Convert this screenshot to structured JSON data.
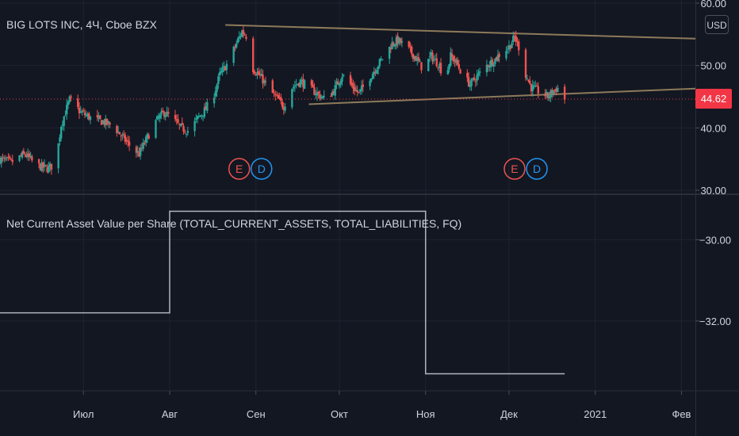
{
  "header": {
    "symbol_title": "BIG LOTS INC, 4Ч, Cboe BZX",
    "currency": "USD"
  },
  "last_price": "44.62",
  "indicator": {
    "title": "Net Current Asset Value per Share (TOTAL_CURRENT_ASSETS, TOTAL_LIABILITIES, FQ)"
  },
  "events": [
    {
      "label": "E",
      "kind": "earnings",
      "date": "2020-08-26"
    },
    {
      "label": "D",
      "kind": "dividend",
      "date": "2020-09-03"
    },
    {
      "label": "E",
      "kind": "earnings",
      "date": "2020-12-03"
    },
    {
      "label": "D",
      "kind": "dividend",
      "date": "2020-12-11"
    }
  ],
  "colors": {
    "background": "#131722",
    "up": "#26a69a",
    "down": "#ef5350",
    "trendline": "#8d7a5a",
    "price_line": "#f23645",
    "earnings": "#ef5350",
    "dividend": "#2196f3",
    "indicator_line": "#b2b5be",
    "grid": "#1f2331",
    "text": "#d1d4dc"
  },
  "chart_data": [
    {
      "type": "candlestick",
      "title": "BIG LOTS INC, 4Ч, Cboe BZX",
      "x_axis": {
        "labels": [
          "Июл",
          "Авг",
          "Сен",
          "Окт",
          "Ноя",
          "Дек",
          "2021",
          "Фев"
        ],
        "label_dates": [
          "2020-07-01",
          "2020-08-01",
          "2020-09-01",
          "2020-10-01",
          "2020-11-01",
          "2020-12-01",
          "2021-01-01",
          "2021-02-01"
        ],
        "range": [
          "2020-06-01",
          "2021-02-06"
        ]
      },
      "y_axis": {
        "ticks": [
          "60.00",
          "50.00",
          "40.00",
          "30.00"
        ],
        "tick_values": [
          60,
          50,
          40,
          30
        ],
        "range": [
          29.5,
          60.5
        ]
      },
      "close_path": [
        [
          "2020-06-01",
          35.0
        ],
        [
          "2020-06-05",
          34.5
        ],
        [
          "2020-06-10",
          35.8
        ],
        [
          "2020-06-14",
          34.0
        ],
        [
          "2020-06-18",
          33.5
        ],
        [
          "2020-06-21",
          34.2
        ],
        [
          "2020-06-23",
          40.5
        ],
        [
          "2020-06-26",
          44.5
        ],
        [
          "2020-06-30",
          42.5
        ],
        [
          "2020-07-04",
          41.5
        ],
        [
          "2020-07-08",
          41.0
        ],
        [
          "2020-07-12",
          40.2
        ],
        [
          "2020-07-15",
          38.5
        ],
        [
          "2020-07-18",
          37.0
        ],
        [
          "2020-07-21",
          35.8
        ],
        [
          "2020-07-24",
          38.5
        ],
        [
          "2020-07-27",
          41.0
        ],
        [
          "2020-07-30",
          42.5
        ],
        [
          "2020-08-02",
          41.5
        ],
        [
          "2020-08-05",
          40.0
        ],
        [
          "2020-08-08",
          39.5
        ],
        [
          "2020-08-11",
          41.5
        ],
        [
          "2020-08-14",
          43.0
        ],
        [
          "2020-08-17",
          45.5
        ],
        [
          "2020-08-19",
          48.5
        ],
        [
          "2020-08-22",
          50.5
        ],
        [
          "2020-08-25",
          53.5
        ],
        [
          "2020-08-27",
          55.5
        ],
        [
          "2020-08-29",
          54.5
        ],
        [
          "2020-08-31",
          49.5
        ],
        [
          "2020-09-03",
          48.0
        ],
        [
          "2020-09-06",
          46.0
        ],
        [
          "2020-09-09",
          44.5
        ],
        [
          "2020-09-11",
          43.5
        ],
        [
          "2020-09-14",
          46.5
        ],
        [
          "2020-09-17",
          47.5
        ],
        [
          "2020-09-20",
          46.5
        ],
        [
          "2020-09-23",
          45.5
        ],
        [
          "2020-09-26",
          44.5
        ],
        [
          "2020-09-29",
          46.0
        ],
        [
          "2020-10-02",
          48.5
        ],
        [
          "2020-10-05",
          47.0
        ],
        [
          "2020-10-08",
          45.5
        ],
        [
          "2020-10-11",
          47.5
        ],
        [
          "2020-10-14",
          49.5
        ],
        [
          "2020-10-17",
          51.5
        ],
        [
          "2020-10-20",
          53.5
        ],
        [
          "2020-10-22",
          54.0
        ],
        [
          "2020-10-25",
          53.0
        ],
        [
          "2020-10-28",
          51.5
        ],
        [
          "2020-10-31",
          49.5
        ],
        [
          "2020-11-03",
          51.5
        ],
        [
          "2020-11-06",
          50.0
        ],
        [
          "2020-11-08",
          47.5
        ],
        [
          "2020-11-10",
          51.5
        ],
        [
          "2020-11-12",
          50.5
        ],
        [
          "2020-11-15",
          48.0
        ],
        [
          "2020-11-17",
          47.0
        ],
        [
          "2020-11-20",
          48.5
        ],
        [
          "2020-11-23",
          50.0
        ],
        [
          "2020-11-26",
          51.0
        ],
        [
          "2020-11-28",
          52.0
        ],
        [
          "2020-12-01",
          53.0
        ],
        [
          "2020-12-03",
          54.5
        ],
        [
          "2020-12-05",
          52.5
        ],
        [
          "2020-12-07",
          48.5
        ],
        [
          "2020-12-09",
          46.5
        ],
        [
          "2020-12-11",
          46.0
        ],
        [
          "2020-12-13",
          45.5
        ],
        [
          "2020-12-15",
          45.0
        ],
        [
          "2020-12-17",
          46.0
        ],
        [
          "2020-12-19",
          46.5
        ],
        [
          "2020-12-21",
          44.62
        ]
      ],
      "trendlines": [
        {
          "from": [
            "2020-08-21",
            56.5
          ],
          "to": [
            "2021-02-06",
            54.3
          ]
        },
        {
          "from": [
            "2020-09-20",
            43.8
          ],
          "to": [
            "2021-02-06",
            46.3
          ]
        }
      ],
      "last_price_line": 44.62
    },
    {
      "type": "line",
      "title": "Net Current Asset Value per Share (TOTAL_CURRENT_ASSETS, TOTAL_LIABILITIES, FQ)",
      "y_axis": {
        "ticks": [
          "−30.00",
          "−32.00"
        ],
        "tick_values": [
          -30,
          -32
        ],
        "range": [
          -33.7,
          -28.9
        ]
      },
      "steps": [
        {
          "from": "2020-06-01",
          "to": "2020-08-01",
          "value": -31.8
        },
        {
          "from": "2020-08-01",
          "to": "2020-11-01",
          "value": -29.3
        },
        {
          "from": "2020-11-01",
          "to": "2020-12-21",
          "value": -33.3
        }
      ]
    }
  ]
}
